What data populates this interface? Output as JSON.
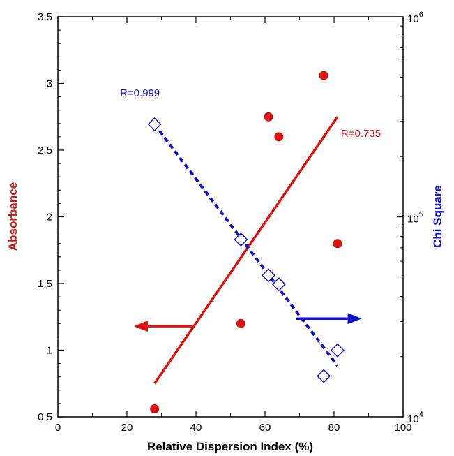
{
  "chart_data": {
    "type": "scatter",
    "xlabel": "Relative Dispersion Index (%)",
    "ylabel": "Absorbance",
    "y2label": "Chi Square",
    "xlim": [
      0,
      100
    ],
    "ylim": [
      0.5,
      3.5
    ],
    "y2lim": [
      10000,
      1000000
    ],
    "y2scale": "log",
    "grid": false,
    "x_ticks": [
      "0",
      "20",
      "40",
      "60",
      "80",
      "100"
    ],
    "y_ticks": [
      "0.5",
      "1",
      "1.5",
      "2",
      "2.5",
      "3",
      "3.5"
    ],
    "y2_tick_mantissa": [
      "10",
      "10",
      "10"
    ],
    "y2_tick_exponents": [
      "4",
      "5",
      "6"
    ],
    "y2_ticks": [
      10000,
      100000,
      1000000
    ],
    "colors": {
      "absorbance": "#dd1111",
      "chi_square": "#1111cc"
    },
    "series": [
      {
        "axis": "left",
        "marker": "filled-circle",
        "x": [
          28,
          53,
          61,
          64,
          77,
          81
        ],
        "y": [
          0.56,
          1.2,
          2.75,
          2.6,
          3.06,
          1.8
        ]
      },
      {
        "axis": "right",
        "marker": "open-diamond",
        "x": [
          28,
          53,
          61,
          64,
          77,
          81
        ],
        "y": [
          290000,
          77000,
          51000,
          46000,
          16000,
          21500
        ]
      }
    ],
    "fits": [
      {
        "axis": "left",
        "style": "solid",
        "x": [
          28,
          81
        ],
        "y": [
          0.75,
          2.75
        ],
        "label": "R=0.735",
        "label_x": 82,
        "label_y": 2.6
      },
      {
        "axis": "right",
        "style": "dashed",
        "x": [
          28,
          81
        ],
        "y": [
          290000,
          18000
        ],
        "label": "R=0.999",
        "label_x": 18,
        "label_y": 400000
      }
    ],
    "arrows": [
      {
        "axis": "left",
        "from_x": 39,
        "to_x": 22,
        "y": 1.18,
        "direction": "left"
      },
      {
        "axis": "right",
        "from_x": 69,
        "to_x": 88,
        "y": 31000,
        "direction": "right"
      }
    ]
  }
}
